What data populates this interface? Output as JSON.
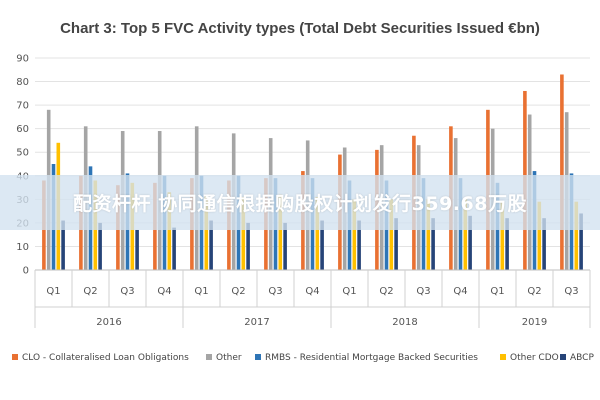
{
  "chart_data": {
    "type": "bar",
    "title": "Chart 3: Top 5 FVC Activity types (Total Debt Securities Issued €bn)",
    "xlabel": "",
    "ylabel": "",
    "ylim": [
      0,
      90
    ],
    "yticks": [
      0,
      10,
      20,
      30,
      40,
      50,
      60,
      70,
      80,
      90
    ],
    "categories": [
      "Q1",
      "Q2",
      "Q3",
      "Q4",
      "Q1",
      "Q2",
      "Q3",
      "Q4",
      "Q1",
      "Q2",
      "Q3",
      "Q4",
      "Q1",
      "Q2",
      "Q3"
    ],
    "years": [
      {
        "label": "2016",
        "start": 0,
        "count": 4
      },
      {
        "label": "2017",
        "start": 4,
        "count": 4
      },
      {
        "label": "2018",
        "start": 8,
        "count": 4
      },
      {
        "label": "2019",
        "start": 12,
        "count": 3
      }
    ],
    "series": [
      {
        "name": "CLO - Collateralised Loan Obligations",
        "color": "#E97132",
        "values": [
          38,
          40,
          36,
          37,
          39,
          38,
          39,
          42,
          49,
          51,
          57,
          61,
          68,
          76,
          83
        ]
      },
      {
        "name": "Other",
        "color": "#A5A5A5",
        "values": [
          68,
          61,
          59,
          59,
          61,
          58,
          56,
          55,
          52,
          53,
          53,
          56,
          60,
          66,
          67
        ]
      },
      {
        "name": "RMBS - Residential Mortgage Backed Securities",
        "color": "#2E75B6",
        "values": [
          45,
          44,
          41,
          40,
          40,
          40,
          39,
          39,
          38,
          38,
          39,
          39,
          37,
          42,
          41
        ]
      },
      {
        "name": "Other CDO",
        "color": "#FFC000",
        "values": [
          54,
          38,
          37,
          33,
          32,
          31,
          32,
          31,
          30,
          30,
          30,
          30,
          29,
          29,
          29
        ]
      },
      {
        "name": "ABCP",
        "color": "#264478",
        "values": [
          21,
          20,
          17,
          18,
          21,
          20,
          20,
          21,
          21,
          22,
          22,
          23,
          22,
          22,
          24
        ]
      }
    ],
    "legend_position": "bottom",
    "grid": true
  },
  "overlay": {
    "text": "配资杆杆 协同通信根据购股权计划发行359.68万股"
  }
}
